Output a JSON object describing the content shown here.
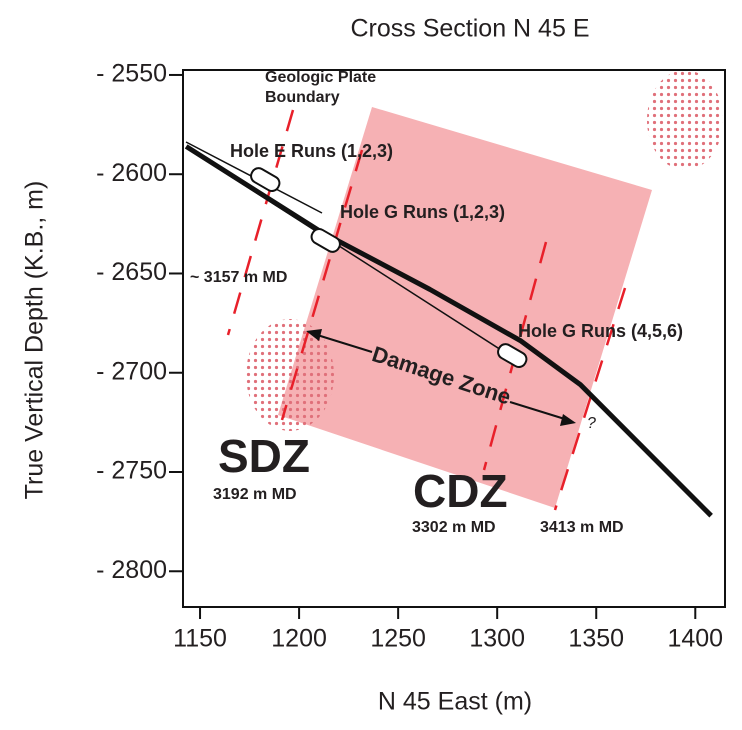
{
  "chart_data": {
    "type": "cross-section",
    "title": "Cross Section N 45 E",
    "x_label": "N 45 East (m)",
    "y_label": "True Vertical Depth (K.B., m)",
    "xlim": [
      1141.4,
      1415
    ],
    "ylim": [
      -2818,
      -2547.5
    ],
    "xticks": [
      1150,
      1200,
      1250,
      1300,
      1350,
      1400
    ],
    "yticks": [
      {
        "value": -2550,
        "label": "- 2550"
      },
      {
        "value": -2600,
        "label": "- 2600"
      },
      {
        "value": -2650,
        "label": "- 2650"
      },
      {
        "value": -2700,
        "label": "- 2700"
      },
      {
        "value": -2750,
        "label": "- 2750"
      },
      {
        "value": -2800,
        "label": "- 2800"
      }
    ],
    "series": [
      {
        "color": "#111111",
        "x": [
          1143,
          1211,
          1266,
          1312,
          1342,
          1408
        ],
        "values": [
          -2586,
          -2629,
          -2658,
          -2684,
          -2706,
          -2772
        ]
      }
    ],
    "annotations": {
      "plate_boundary": [
        "Geologic Plate",
        "Boundary"
      ],
      "hole_e": "Hole E Runs (1,2,3)",
      "hole_g1": "Hole G Runs (1,2,3)",
      "md_3157": "~ 3157 m MD",
      "hole_g2": "Hole G Runs (4,5,6)",
      "damage_zone": "Damage Zone",
      "question": "?",
      "sdz": "SDZ",
      "md_3192": "3192 m MD",
      "cdz": "CDZ",
      "md_3302": "3302 m MD",
      "md_3413": "3413 m MD"
    }
  }
}
